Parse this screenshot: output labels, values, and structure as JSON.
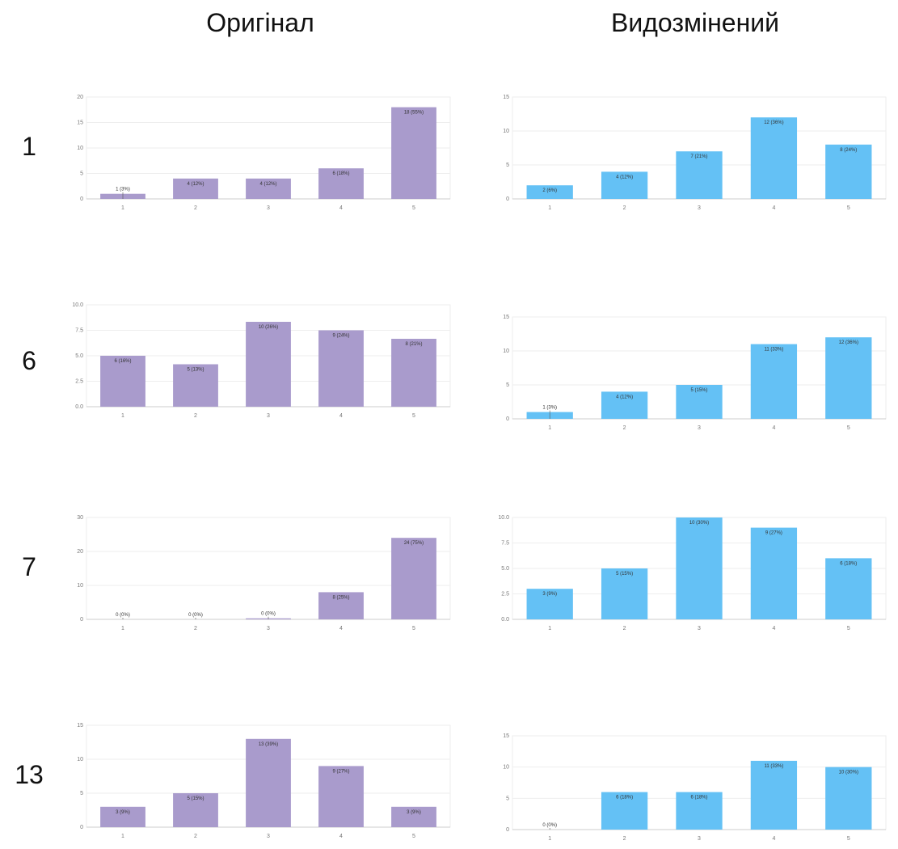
{
  "headers": {
    "original": "Оригінал",
    "modified": "Видозмінений"
  },
  "rows": [
    "1",
    "6",
    "7",
    "13"
  ],
  "colors": {
    "original": "#a99bcc",
    "modified": "#64c1f5",
    "grid": "#eeeeee",
    "axis": "#cccccc"
  },
  "chart_data": [
    {
      "id": "orig-1",
      "type": "bar",
      "categories": [
        "1",
        "2",
        "3",
        "4",
        "5"
      ],
      "values": [
        1,
        4,
        4,
        6,
        18
      ],
      "labels": [
        "1 (3%)",
        "4 (12%)",
        "4 (12%)",
        "6 (18%)",
        "18 (55%)"
      ],
      "ylim": [
        0,
        20
      ],
      "yticks": [
        "0",
        "5",
        "10",
        "15",
        "20"
      ]
    },
    {
      "id": "mod-1",
      "type": "bar",
      "categories": [
        "1",
        "2",
        "3",
        "4",
        "5"
      ],
      "values": [
        2,
        4,
        7,
        12,
        8
      ],
      "labels": [
        "2 (6%)",
        "4 (12%)",
        "7 (21%)",
        "12 (36%)",
        "8 (24%)"
      ],
      "ylim": [
        0,
        15
      ],
      "yticks": [
        "0",
        "5",
        "10",
        "15"
      ]
    },
    {
      "id": "orig-6",
      "type": "bar",
      "categories": [
        "1",
        "2",
        "3",
        "4",
        "5"
      ],
      "values": [
        6,
        5,
        10,
        9,
        8
      ],
      "labels": [
        "6 (16%)",
        "5 (13%)",
        "10 (26%)",
        "9 (24%)",
        "8 (21%)"
      ],
      "ylim": [
        0,
        12
      ],
      "yticks": [
        "0.0",
        "2.5",
        "5.0",
        "7.5",
        "10.0"
      ]
    },
    {
      "id": "mod-6",
      "type": "bar",
      "categories": [
        "1",
        "2",
        "3",
        "4",
        "5"
      ],
      "values": [
        1,
        4,
        5,
        11,
        12
      ],
      "labels": [
        "1 (3%)",
        "4 (12%)",
        "5 (15%)",
        "11 (33%)",
        "12 (36%)"
      ],
      "ylim": [
        0,
        15
      ],
      "yticks": [
        "0",
        "5",
        "10",
        "15"
      ]
    },
    {
      "id": "orig-7",
      "type": "bar",
      "categories": [
        "1",
        "2",
        "3",
        "4",
        "5"
      ],
      "values": [
        0,
        0,
        0.3,
        8,
        24
      ],
      "labels": [
        "0 (0%)",
        "0 (0%)",
        "0 (0%)",
        "8 (25%)",
        "24 (75%)"
      ],
      "ylim": [
        0,
        30
      ],
      "yticks": [
        "0",
        "10",
        "20",
        "30"
      ]
    },
    {
      "id": "mod-7",
      "type": "bar",
      "categories": [
        "1",
        "2",
        "3",
        "4",
        "5"
      ],
      "values": [
        3,
        5,
        10,
        9,
        6
      ],
      "labels": [
        "3 (9%)",
        "5 (15%)",
        "10 (30%)",
        "9 (27%)",
        "6 (18%)"
      ],
      "ylim": [
        0,
        10
      ],
      "yticks": [
        "0.0",
        "2.5",
        "5.0",
        "7.5",
        "10.0"
      ]
    },
    {
      "id": "orig-13",
      "type": "bar",
      "categories": [
        "1",
        "2",
        "3",
        "4",
        "5"
      ],
      "values": [
        3,
        5,
        13,
        9,
        3
      ],
      "labels": [
        "3 (9%)",
        "5 (15%)",
        "13 (39%)",
        "9 (27%)",
        "3 (9%)"
      ],
      "ylim": [
        0,
        15
      ],
      "yticks": [
        "0",
        "5",
        "10",
        "15"
      ]
    },
    {
      "id": "mod-13",
      "type": "bar",
      "categories": [
        "1",
        "2",
        "3",
        "4",
        "5"
      ],
      "values": [
        0,
        6,
        6,
        11,
        10
      ],
      "labels": [
        "0 (0%)",
        "6 (18%)",
        "6 (18%)",
        "11 (33%)",
        "10 (30%)"
      ],
      "ylim": [
        0,
        15
      ],
      "yticks": [
        "0",
        "5",
        "10",
        "15"
      ]
    }
  ]
}
